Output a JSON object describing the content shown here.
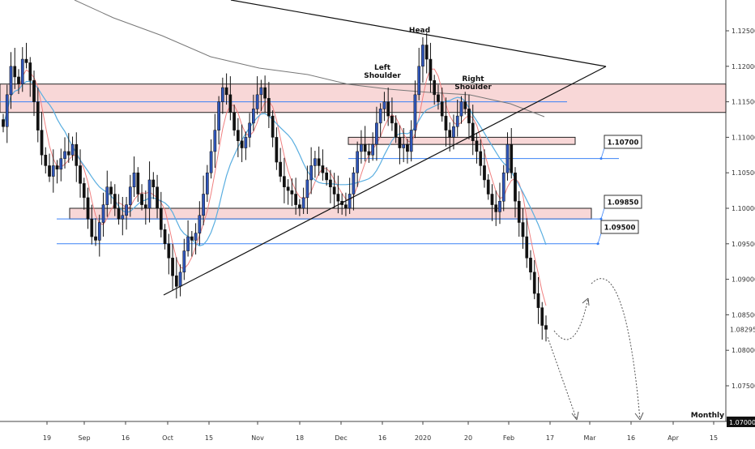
{
  "chart_data": {
    "type": "candlestick",
    "ylim": [
      1.0675,
      1.1275
    ],
    "y_ticks": [
      "1.12500",
      "1.12000",
      "1.11500",
      "1.11000",
      "1.10500",
      "1.10000",
      "1.09500",
      "1.09000",
      "1.08500",
      "1.08000",
      "1.07500"
    ],
    "x_ticks": [
      {
        "label": "19",
        "x": 58
      },
      {
        "label": "Sep",
        "x": 104
      },
      {
        "label": "16",
        "x": 155
      },
      {
        "label": "Oct",
        "x": 207
      },
      {
        "label": "15",
        "x": 258
      },
      {
        "label": "Nov",
        "x": 318
      },
      {
        "label": "18",
        "x": 370
      },
      {
        "label": "Dec",
        "x": 421
      },
      {
        "label": "16",
        "x": 472
      },
      {
        "label": "2020",
        "x": 522
      },
      {
        "label": "20",
        "x": 578
      },
      {
        "label": "Feb",
        "x": 628
      },
      {
        "label": "17",
        "x": 679
      },
      {
        "label": "Mar",
        "x": 728
      },
      {
        "label": "16",
        "x": 779
      },
      {
        "label": "Apr",
        "x": 831
      },
      {
        "label": "15",
        "x": 881
      }
    ],
    "closes": [
      1.1115,
      1.116,
      1.12,
      1.1185,
      1.1175,
      1.121,
      1.1205,
      1.118,
      1.115,
      1.111,
      1.1075,
      1.106,
      1.1045,
      1.106,
      1.1055,
      1.107,
      1.108,
      1.1075,
      1.109,
      1.106,
      1.1035,
      1.1015,
      1.0985,
      1.096,
      1.0955,
      1.098,
      1.1005,
      1.103,
      1.102,
      1.1,
      1.0985,
      1.099,
      1.1005,
      1.103,
      1.105,
      1.102,
      1.1005,
      1.1,
      1.104,
      1.103,
      1.1,
      1.097,
      1.095,
      1.093,
      1.0905,
      1.089,
      1.091,
      1.094,
      1.096,
      1.0955,
      1.0965,
      1.099,
      1.102,
      1.105,
      1.108,
      1.111,
      1.115,
      1.117,
      1.116,
      1.1135,
      1.111,
      1.1095,
      1.1085,
      1.11,
      1.112,
      1.114,
      1.116,
      1.117,
      1.1155,
      1.113,
      1.11,
      1.1065,
      1.1045,
      1.103,
      1.1025,
      1.102,
      1.1005,
      1.1,
      1.1015,
      1.104,
      1.106,
      1.107,
      1.106,
      1.105,
      1.104,
      1.103,
      1.102,
      1.101,
      1.1005,
      1.1,
      1.102,
      1.105,
      1.108,
      1.109,
      1.108,
      1.1075,
      1.109,
      1.112,
      1.114,
      1.115,
      1.113,
      1.112,
      1.11,
      1.1085,
      1.109,
      1.108,
      1.111,
      1.116,
      1.12,
      1.123,
      1.121,
      1.118,
      1.116,
      1.115,
      1.113,
      1.111,
      1.11,
      1.1115,
      1.113,
      1.115,
      1.114,
      1.112,
      1.1095,
      1.108,
      1.106,
      1.104,
      1.102,
      1.1005,
      1.0995,
      1.101,
      1.105,
      1.109,
      1.105,
      1.101,
      1.098,
      1.096,
      1.093,
      1.091,
      1.088,
      1.086,
      1.0835,
      1.08295
    ],
    "overlays": [
      "moving-average-fast",
      "moving-average-medium",
      "moving-average-slow"
    ],
    "zones": [
      {
        "from": 1.1135,
        "to": 1.1175
      },
      {
        "from": 1.109,
        "to": 1.11
      },
      {
        "from": 1.0985,
        "to": 1.1
      }
    ],
    "levels": [
      {
        "label": "1.10700",
        "value": 1.107
      },
      {
        "label": "1.09850",
        "value": 1.0985
      },
      {
        "label": "1.09500",
        "value": 1.095
      }
    ],
    "annotations": [
      "Head",
      "Left\nShoulder",
      "Right\nShoulder"
    ],
    "monthly_label": "Monthly",
    "current_price": "1.08295",
    "monthly_level": "1.07000",
    "colors": {
      "bull": "#2f55b8",
      "bear": "#111111",
      "zone_fill": "#f8d7d7",
      "zone_stroke": "#222222",
      "level": "#3b82f6",
      "ma_red": "#f08080",
      "ma_blue": "#5aaee0",
      "ma_grey": "#777777"
    }
  }
}
